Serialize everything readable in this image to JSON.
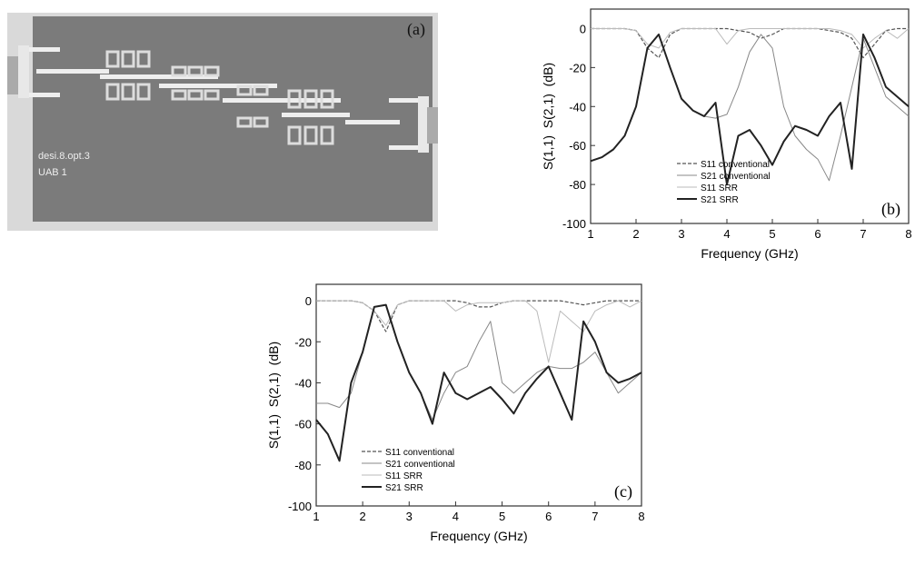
{
  "photo": {
    "label": "(a)",
    "texts": [
      "desi.8.opt.3",
      "UAB 1"
    ]
  },
  "chart_data": [
    {
      "type": "line",
      "annotation": "(b)",
      "xlabel": "Frequency (GHz)",
      "ylabel": "S(1,1)  S(2,1)  (dB)",
      "xlim": [
        1,
        8
      ],
      "ylim": [
        -100,
        10
      ],
      "xticks": [
        1,
        2,
        3,
        4,
        5,
        6,
        7,
        8
      ],
      "yticks": [
        0,
        -20,
        -40,
        -60,
        -80,
        -100
      ],
      "legend": "lower center",
      "x": [
        1,
        1.25,
        1.5,
        1.75,
        2,
        2.25,
        2.5,
        2.75,
        3,
        3.25,
        3.5,
        3.75,
        4,
        4.25,
        4.5,
        4.75,
        5,
        5.25,
        5.5,
        5.75,
        6,
        6.25,
        6.5,
        6.75,
        7,
        7.25,
        7.5,
        7.75,
        8
      ],
      "series": [
        {
          "name": "S11 conventional",
          "color": "#555555",
          "style": "dashed",
          "width": 1.2,
          "values": [
            0,
            0,
            0,
            0,
            -1,
            -10,
            -15,
            -3,
            0,
            0,
            0,
            0,
            0,
            -1,
            -2,
            -5,
            -3,
            0,
            0,
            0,
            0,
            -1,
            -2,
            -5,
            -15,
            -8,
            -1,
            0,
            0
          ]
        },
        {
          "name": "S21 conventional",
          "color": "#888888",
          "style": "solid",
          "width": 1,
          "values": [
            -68,
            -66,
            -62,
            -55,
            -40,
            -10,
            -3,
            -20,
            -36,
            -42,
            -45,
            -46,
            -44,
            -30,
            -12,
            -3,
            -10,
            -40,
            -55,
            -62,
            -67,
            -78,
            -55,
            -30,
            -5,
            -20,
            -35,
            -40,
            -45
          ]
        },
        {
          "name": "S11 SRR",
          "color": "#bbbbbb",
          "style": "solid",
          "width": 1,
          "values": [
            0,
            0,
            0,
            0,
            -1,
            -8,
            -10,
            -2,
            0,
            0,
            0,
            0,
            -8,
            -1,
            0,
            0,
            0,
            0,
            0,
            0,
            0,
            0,
            -1,
            -3,
            -10,
            -5,
            -1,
            -5,
            0
          ]
        },
        {
          "name": "S21 SRR",
          "color": "#222222",
          "style": "solid",
          "width": 2,
          "values": [
            -68,
            -66,
            -62,
            -55,
            -40,
            -10,
            -3,
            -20,
            -36,
            -42,
            -45,
            -38,
            -80,
            -55,
            -52,
            -60,
            -70,
            -58,
            -50,
            -52,
            -55,
            -45,
            -38,
            -72,
            -3,
            -15,
            -30,
            -35,
            -40
          ]
        }
      ]
    },
    {
      "type": "line",
      "annotation": "(c)",
      "xlabel": "Frequency (GHz)",
      "ylabel": "S(1,1)  S(2,1)  (dB)",
      "xlim": [
        1,
        8
      ],
      "ylim": [
        -100,
        8
      ],
      "xticks": [
        1,
        2,
        3,
        4,
        5,
        6,
        7,
        8
      ],
      "yticks": [
        0,
        -20,
        -40,
        -60,
        -80,
        -100
      ],
      "legend": "lower left",
      "x": [
        1,
        1.25,
        1.5,
        1.75,
        2,
        2.25,
        2.5,
        2.75,
        3,
        3.25,
        3.5,
        3.75,
        4,
        4.25,
        4.5,
        4.75,
        5,
        5.25,
        5.5,
        5.75,
        6,
        6.25,
        6.5,
        6.75,
        7,
        7.25,
        7.5,
        7.75,
        8
      ],
      "series": [
        {
          "name": "S11 conventional",
          "color": "#555555",
          "style": "dashed",
          "width": 1.2,
          "values": [
            0,
            0,
            0,
            0,
            -1,
            -5,
            -15,
            -2,
            0,
            0,
            0,
            0,
            0,
            -1,
            -3,
            -3,
            -1,
            0,
            0,
            0,
            0,
            0,
            -1,
            -2,
            -1,
            0,
            0,
            0,
            0
          ]
        },
        {
          "name": "S21 conventional",
          "color": "#888888",
          "style": "solid",
          "width": 1,
          "values": [
            -50,
            -50,
            -52,
            -45,
            -25,
            -3,
            -2,
            -20,
            -35,
            -45,
            -58,
            -45,
            -35,
            -32,
            -20,
            -10,
            -40,
            -45,
            -40,
            -35,
            -32,
            -33,
            -33,
            -30,
            -25,
            -35,
            -45,
            -40,
            -35
          ]
        },
        {
          "name": "S11 SRR",
          "color": "#bbbbbb",
          "style": "solid",
          "width": 1,
          "values": [
            0,
            0,
            0,
            0,
            -1,
            -5,
            -12,
            -2,
            0,
            0,
            0,
            0,
            -5,
            -2,
            -1,
            -1,
            -1,
            0,
            0,
            -5,
            -30,
            -5,
            -10,
            -15,
            -5,
            -2,
            0,
            -3,
            0
          ]
        },
        {
          "name": "S21 SRR",
          "color": "#222222",
          "style": "solid",
          "width": 2,
          "values": [
            -58,
            -65,
            -78,
            -40,
            -25,
            -3,
            -2,
            -20,
            -35,
            -45,
            -60,
            -35,
            -45,
            -48,
            -45,
            -42,
            -48,
            -55,
            -45,
            -38,
            -32,
            -45,
            -58,
            -10,
            -20,
            -35,
            -40,
            -38,
            -35
          ]
        }
      ]
    }
  ]
}
